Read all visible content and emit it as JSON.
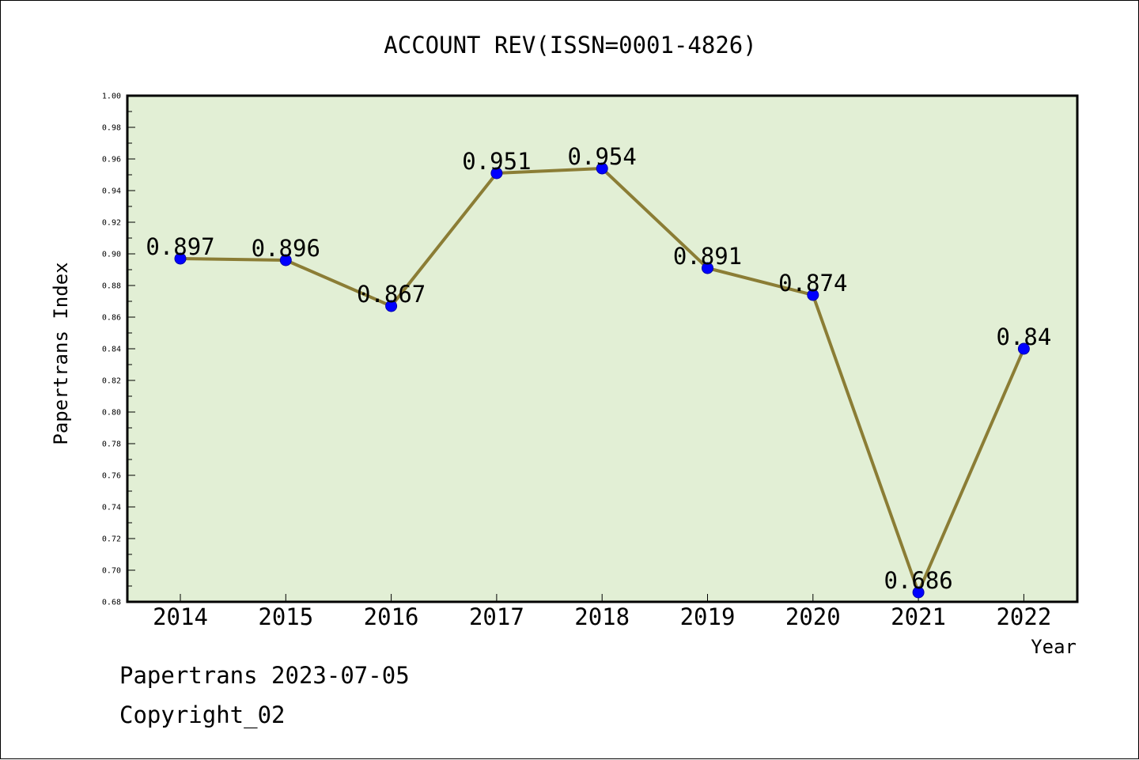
{
  "chart_data": {
    "type": "line",
    "title": "ACCOUNT REV(ISSN=0001-4826)",
    "xlabel": "Year",
    "ylabel": "Papertrans Index",
    "categories": [
      "2014",
      "2015",
      "2016",
      "2017",
      "2018",
      "2019",
      "2020",
      "2021",
      "2022"
    ],
    "values": [
      0.897,
      0.896,
      0.867,
      0.951,
      0.954,
      0.891,
      0.874,
      0.686,
      0.84
    ],
    "data_labels": [
      "0.897",
      "0.896",
      "0.867",
      "0.951",
      "0.954",
      "0.891",
      "0.874",
      "0.686",
      "0.84"
    ],
    "ylim": [
      0.68,
      1.0
    ],
    "yticks": [
      "0.68",
      "0.70",
      "0.72",
      "0.74",
      "0.76",
      "0.78",
      "0.80",
      "0.82",
      "0.84",
      "0.86",
      "0.88",
      "0.90",
      "0.92",
      "0.94",
      "0.96",
      "0.98",
      "1.00"
    ],
    "grid": false,
    "legend": "none",
    "colors": {
      "plot_background": "#e2efd5",
      "line": "#8b7d35",
      "marker": "#0000ff"
    }
  },
  "footer": {
    "line1": "Papertrans 2023-07-05",
    "line2": "Copyright_02"
  }
}
